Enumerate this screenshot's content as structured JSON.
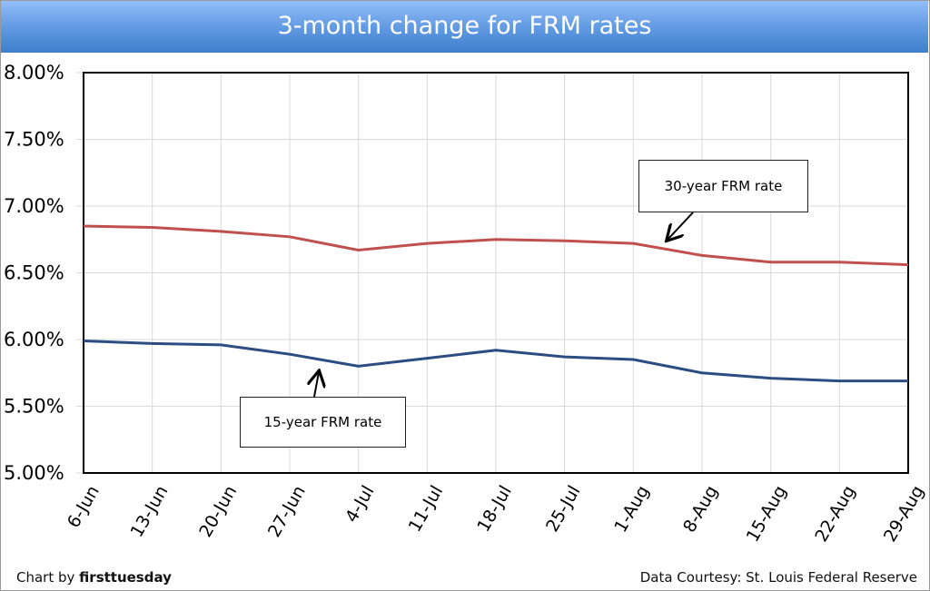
{
  "chart_data": {
    "type": "line",
    "title": "3-month change for FRM rates",
    "xlabel": "",
    "ylabel": "",
    "categories": [
      "6-Jun",
      "13-Jun",
      "20-Jun",
      "27-Jun",
      "4-Jul",
      "11-Jul",
      "18-Jul",
      "25-Jul",
      "1-Aug",
      "8-Aug",
      "15-Aug",
      "22-Aug",
      "29-Aug"
    ],
    "yticks": [
      "5.00%",
      "5.50%",
      "6.00%",
      "6.50%",
      "7.00%",
      "7.50%",
      "8.00%"
    ],
    "ylim": [
      5.0,
      8.0
    ],
    "grid": true,
    "series": [
      {
        "name": "30-year FRM rate",
        "color": "#c0504d",
        "values": [
          6.85,
          6.84,
          6.81,
          6.77,
          6.67,
          6.72,
          6.75,
          6.74,
          6.72,
          6.63,
          6.58,
          6.58,
          6.56
        ]
      },
      {
        "name": "15-year FRM rate",
        "color": "#2c4d82",
        "values": [
          5.99,
          5.97,
          5.96,
          5.89,
          5.8,
          5.86,
          5.92,
          5.87,
          5.85,
          5.75,
          5.71,
          5.69,
          5.69
        ]
      }
    ],
    "annotations": [
      "30-year FRM rate",
      "15-year FRM rate"
    ]
  },
  "footer": {
    "credit_prefix": "Chart by",
    "credit_brand": "firsttuesday",
    "source": "Data Courtesy: St. Louis Federal Reserve"
  }
}
